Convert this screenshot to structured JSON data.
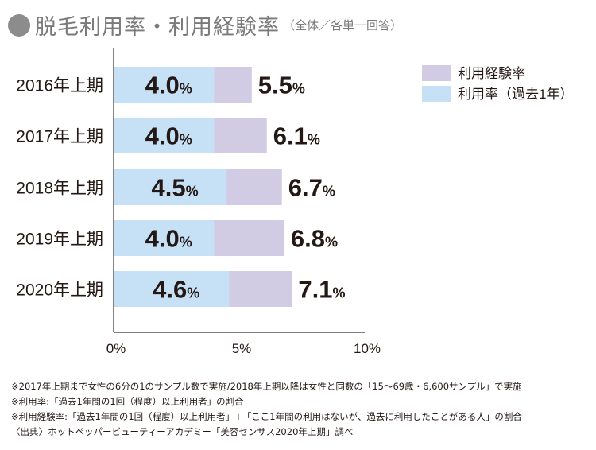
{
  "header": {
    "title": "脱毛利用率・利用経験率",
    "subtitle": "（全体／各単一回答）"
  },
  "colors": {
    "experience": "#d2cbe4",
    "usage": "#c6e1f5",
    "axis": "#333333"
  },
  "chart_data": {
    "type": "bar",
    "orientation": "horizontal",
    "stacked_overlay": true,
    "categories": [
      "2016年上期",
      "2017年上期",
      "2018年上期",
      "2019年上期",
      "2020年上期"
    ],
    "series": [
      {
        "name": "利用経験率",
        "values": [
          5.5,
          6.1,
          6.7,
          6.8,
          7.1
        ]
      },
      {
        "name": "利用率（過去1年）",
        "values": [
          4.0,
          4.0,
          4.5,
          4.0,
          4.6
        ]
      }
    ],
    "value_labels_usage": [
      "4.0",
      "4.0",
      "4.5",
      "4.0",
      "4.6"
    ],
    "value_labels_experience": [
      "5.5",
      "6.1",
      "6.7",
      "6.8",
      "7.1"
    ],
    "unit": "%",
    "xlim": [
      0,
      10
    ],
    "xticks": [
      "0%",
      "5%",
      "10%"
    ],
    "grid": false,
    "legend_position": "top-right"
  },
  "notes": [
    "※2017年上期まで女性の6分の1のサンプル数で実施/2018年上期以降は女性と同数の「15～69歳・6,600サンプル」で実施",
    "※利用率:「過去1年間の1回（程度）以上利用者」の割合",
    "※利用経験率:「過去1年間の1回（程度）以上利用者」+「ここ1年間の利用はないが、過去に利用したことがある人」の割合",
    "〈出典〉ホットペッパービューティーアカデミー「美容センサス2020年上期」調べ"
  ]
}
